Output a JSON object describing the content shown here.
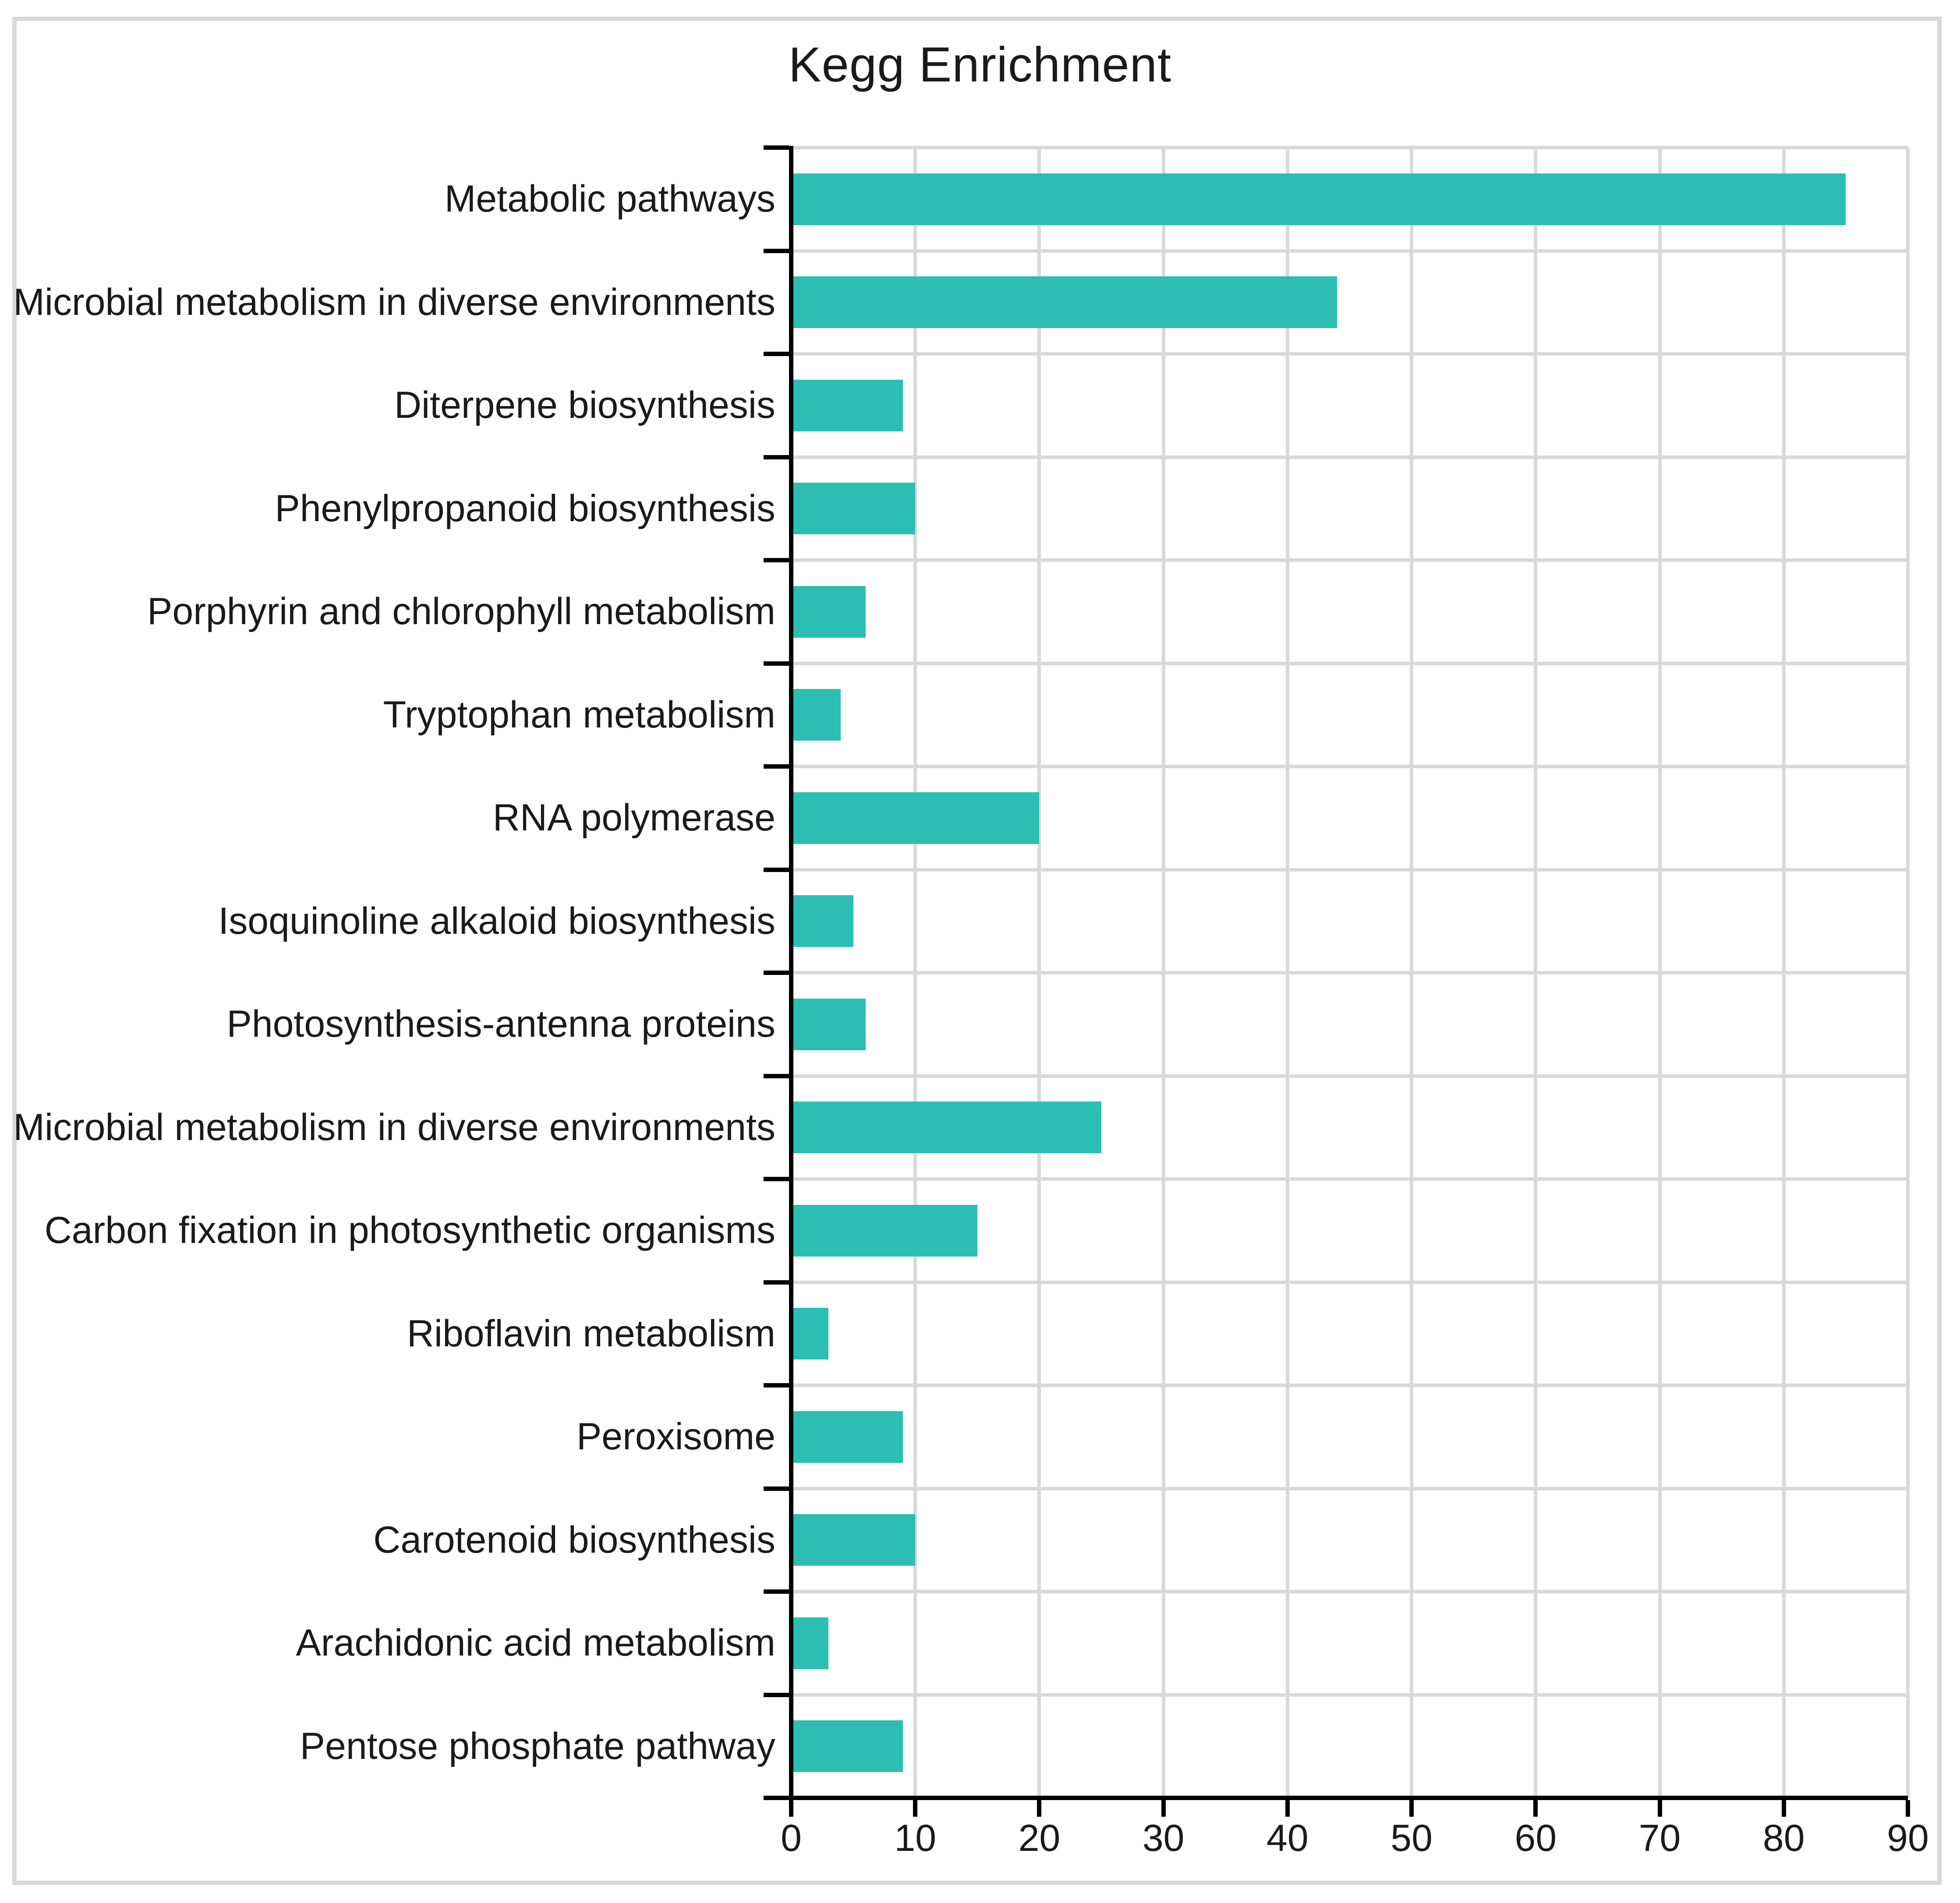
{
  "title": "Kegg Enrichment",
  "chart_data": {
    "type": "bar",
    "orientation": "horizontal",
    "title": "Kegg Enrichment",
    "categories": [
      "Metabolic pathways",
      "Microbial metabolism in diverse environments",
      "Diterpene biosynthesis",
      "Phenylpropanoid biosynthesis",
      "Porphyrin and chlorophyll metabolism",
      "Tryptophan metabolism",
      "RNA polymerase",
      "Isoquinoline alkaloid biosynthesis",
      "Photosynthesis-antenna proteins",
      "Microbial metabolism in diverse environments",
      "Carbon fixation in photosynthetic organisms",
      "Riboflavin metabolism",
      "Peroxisome",
      "Carotenoid biosynthesis",
      "Arachidonic acid metabolism",
      "Pentose phosphate pathway"
    ],
    "values": [
      85,
      44,
      9,
      10,
      6,
      4,
      20,
      5,
      6,
      25,
      15,
      3,
      9,
      10,
      3,
      9
    ],
    "x_ticks": [
      "0",
      "10",
      "20",
      "30",
      "40",
      "50",
      "60",
      "70",
      "80",
      "90"
    ],
    "xlim": [
      0,
      90
    ],
    "xlabel": "",
    "ylabel": "",
    "grid": true,
    "legend": "none",
    "colors": {
      "bar": "#2cbeb2",
      "gridline": "#d9d9d9",
      "axis": "#000000",
      "text": "#1a1a1a",
      "frame_border": "#d9d9d9",
      "background": "#ffffff"
    }
  }
}
